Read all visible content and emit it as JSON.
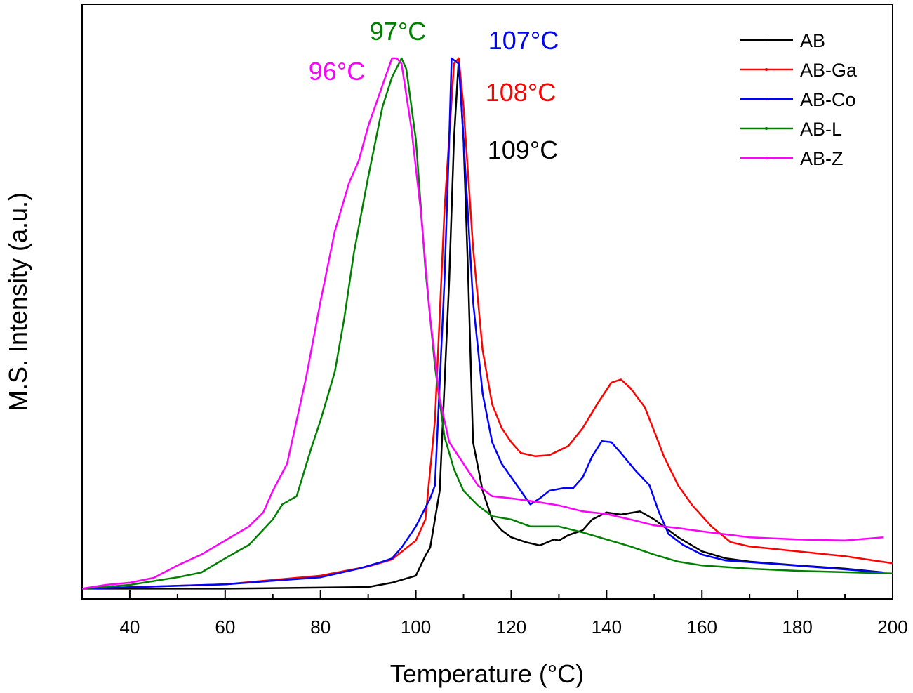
{
  "chart_data": {
    "type": "line",
    "title": "",
    "xlabel": "Temperature (°C)",
    "ylabel": "M.S. Intensity (a.u.)",
    "xlim": [
      30,
      200
    ],
    "ylim": [
      0,
      1.1
    ],
    "x_ticks": [
      40,
      60,
      80,
      100,
      120,
      140,
      160,
      180,
      200
    ],
    "x_minor_step": 10,
    "y_ticks": [],
    "grid": false,
    "legend_position": "top-right",
    "series": [
      {
        "name": "AB",
        "color": "#000000",
        "x": [
          30,
          60,
          90,
          95,
          100,
          102,
          103,
          105,
          107,
          108,
          109,
          110,
          111,
          112,
          114,
          116,
          118,
          120,
          123,
          126,
          129,
          130,
          132,
          135,
          137,
          140,
          143,
          147,
          150,
          155,
          160,
          165,
          170,
          180,
          190,
          198
        ],
        "y": [
          0.019,
          0.019,
          0.022,
          0.03,
          0.043,
          0.08,
          0.095,
          0.2,
          0.59,
          0.85,
          1.0,
          0.85,
          0.59,
          0.29,
          0.2,
          0.147,
          0.127,
          0.114,
          0.105,
          0.099,
          0.11,
          0.108,
          0.118,
          0.127,
          0.147,
          0.16,
          0.156,
          0.162,
          0.147,
          0.114,
          0.088,
          0.075,
          0.069,
          0.062,
          0.056,
          0.049
        ]
      },
      {
        "name": "AB-Ga",
        "color": "#ff0000",
        "x": [
          30,
          60,
          80,
          90,
          95,
          100,
          102,
          104,
          106,
          108,
          109,
          110,
          112,
          114,
          116,
          118,
          120,
          122,
          125,
          128,
          132,
          135,
          138,
          141,
          143,
          145,
          148,
          150,
          152,
          155,
          158,
          162,
          166,
          170,
          180,
          190,
          200
        ],
        "y": [
          0.019,
          0.027,
          0.043,
          0.06,
          0.073,
          0.108,
          0.147,
          0.33,
          0.72,
          0.99,
          1.0,
          0.91,
          0.65,
          0.46,
          0.36,
          0.316,
          0.29,
          0.27,
          0.264,
          0.266,
          0.283,
          0.316,
          0.36,
          0.4,
          0.406,
          0.39,
          0.355,
          0.31,
          0.264,
          0.21,
          0.173,
          0.134,
          0.105,
          0.097,
          0.088,
          0.079,
          0.066
        ]
      },
      {
        "name": "AB-Co",
        "color": "#0000ff",
        "x": [
          30,
          60,
          80,
          88,
          93,
          95,
          97,
          100,
          103,
          104,
          106,
          107,
          107.5,
          109,
          110,
          112,
          114,
          116,
          118,
          120,
          122,
          124,
          126,
          128,
          131,
          133,
          135,
          137,
          139,
          141,
          143,
          146,
          149,
          151,
          153,
          156,
          160,
          165,
          175,
          185,
          198
        ],
        "y": [
          0.019,
          0.027,
          0.04,
          0.056,
          0.069,
          0.075,
          0.095,
          0.134,
          0.186,
          0.21,
          0.59,
          0.85,
          1.0,
          0.99,
          0.85,
          0.55,
          0.38,
          0.29,
          0.25,
          0.225,
          0.2,
          0.175,
          0.186,
          0.2,
          0.205,
          0.205,
          0.225,
          0.264,
          0.292,
          0.29,
          0.27,
          0.238,
          0.21,
          0.16,
          0.12,
          0.1,
          0.082,
          0.071,
          0.065,
          0.058,
          0.049
        ]
      },
      {
        "name": "AB-L",
        "color": "#008000",
        "x": [
          30,
          40,
          50,
          55,
          60,
          65,
          70,
          72,
          75,
          78,
          80,
          83,
          85,
          87,
          90,
          93,
          95,
          97,
          98,
          100,
          102,
          104,
          106,
          108,
          110,
          113,
          116,
          120,
          124,
          130,
          135,
          140,
          145,
          150,
          155,
          160,
          170,
          180,
          200
        ],
        "y": [
          0.019,
          0.026,
          0.04,
          0.049,
          0.075,
          0.1,
          0.147,
          0.175,
          0.19,
          0.277,
          0.33,
          0.42,
          0.52,
          0.64,
          0.78,
          0.91,
          0.965,
          1.0,
          0.98,
          0.85,
          0.61,
          0.43,
          0.3,
          0.24,
          0.2,
          0.173,
          0.153,
          0.147,
          0.134,
          0.134,
          0.123,
          0.11,
          0.097,
          0.082,
          0.069,
          0.062,
          0.056,
          0.052,
          0.047
        ]
      },
      {
        "name": "AB-Z",
        "color": "#ff00ff",
        "x": [
          30,
          35,
          40,
          45,
          50,
          55,
          60,
          65,
          68,
          70,
          73,
          75,
          77,
          80,
          83,
          86,
          88,
          90,
          93,
          95,
          96,
          97,
          99,
          101,
          103,
          105,
          107,
          110,
          113,
          116,
          120,
          125,
          130,
          135,
          140,
          145,
          150,
          155,
          160,
          170,
          180,
          190,
          198
        ],
        "y": [
          0.019,
          0.026,
          0.03,
          0.039,
          0.062,
          0.082,
          0.108,
          0.134,
          0.16,
          0.2,
          0.25,
          0.33,
          0.41,
          0.55,
          0.68,
          0.77,
          0.81,
          0.874,
          0.95,
          1.0,
          1.0,
          0.99,
          0.874,
          0.72,
          0.52,
          0.37,
          0.29,
          0.25,
          0.21,
          0.19,
          0.186,
          0.18,
          0.173,
          0.162,
          0.157,
          0.147,
          0.136,
          0.131,
          0.125,
          0.114,
          0.11,
          0.108,
          0.114
        ]
      }
    ],
    "annotations": [
      {
        "text": "97°C",
        "color": "#008000"
      },
      {
        "text": "107°C",
        "color": "#0000ff"
      },
      {
        "text": "96°C",
        "color": "#ff00ff"
      },
      {
        "text": "108°C",
        "color": "#ff0000"
      },
      {
        "text": "109°C",
        "color": "#000000"
      }
    ]
  }
}
